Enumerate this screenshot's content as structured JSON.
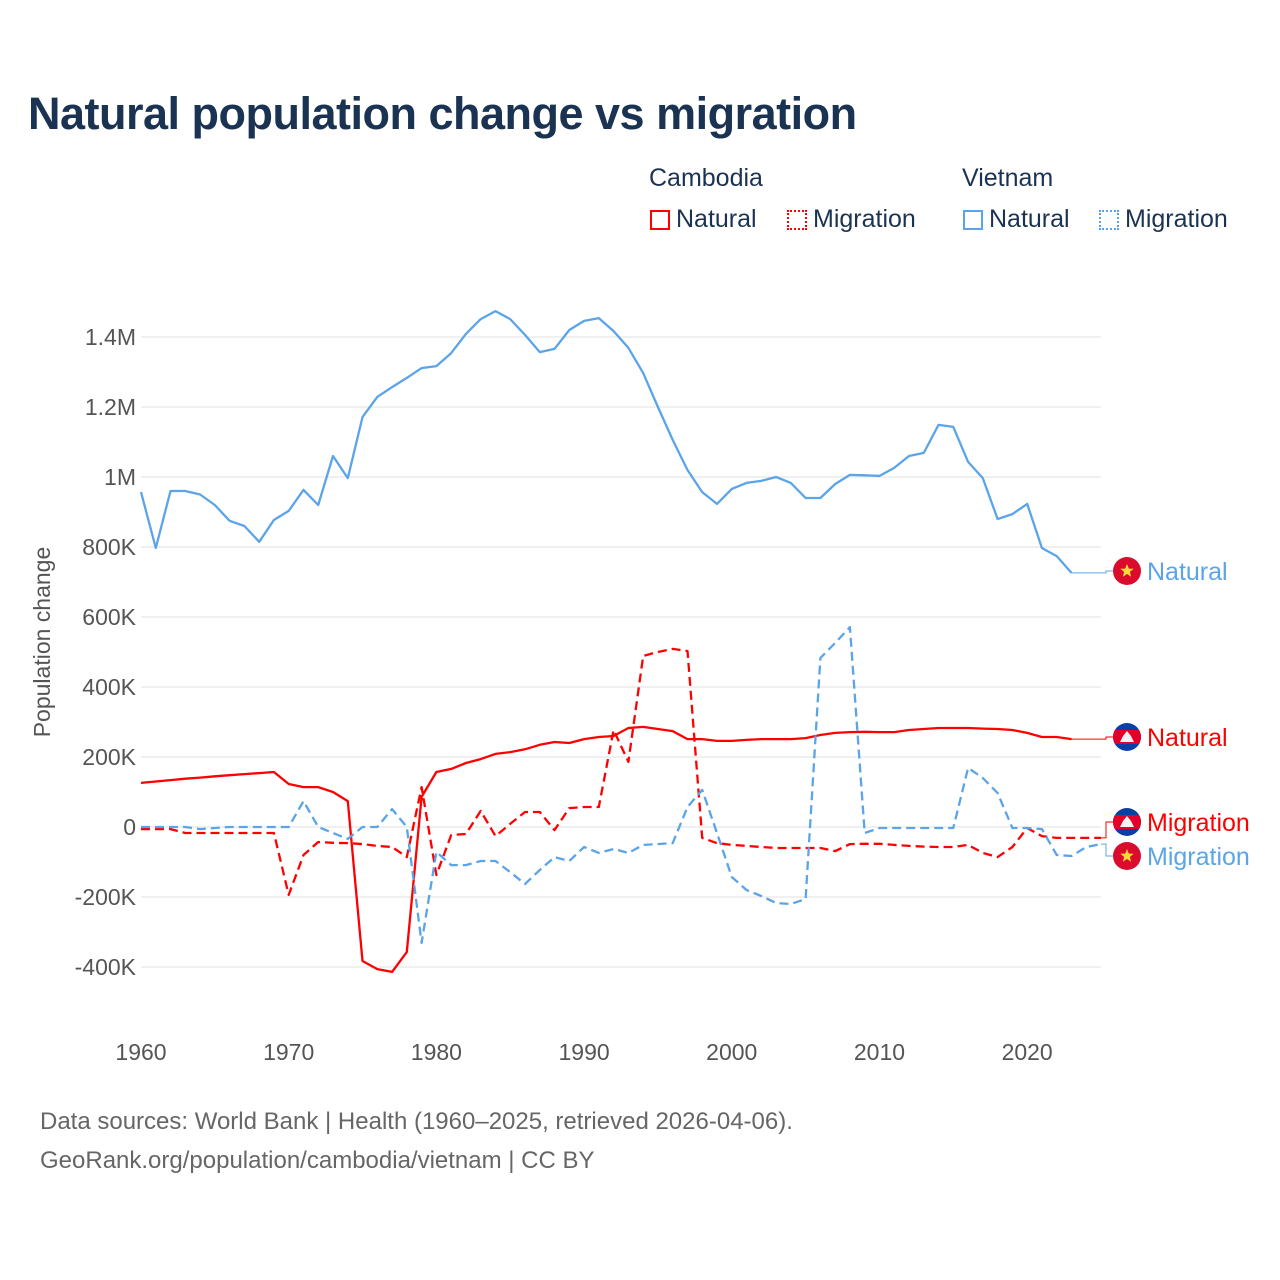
{
  "title": "Natural population change vs migration",
  "legend": {
    "groups": [
      {
        "country": "Cambodia",
        "items": [
          "Natural",
          "Migration"
        ],
        "color": "#ff0000"
      },
      {
        "country": "Vietnam",
        "items": [
          "Natural",
          "Migration"
        ],
        "color": "#5ba4e9"
      }
    ]
  },
  "footer": {
    "line1": "Data sources: World Bank | Health (1960–2025, retrieved 2026-04-06).",
    "line2": "GeoRank.org/population/cambodia/vietnam | CC BY"
  },
  "chart_data": {
    "type": "line",
    "title": "Natural population change vs migration",
    "xlabel": "",
    "ylabel": "Population change",
    "xlim": [
      1960,
      2025
    ],
    "ylim": [
      -500000,
      1500000
    ],
    "x_ticks": [
      1960,
      1970,
      1980,
      1990,
      2000,
      2010,
      2020
    ],
    "y_ticks": [
      {
        "value": -400000,
        "label": "-400K"
      },
      {
        "value": -200000,
        "label": "-200K"
      },
      {
        "value": 0,
        "label": "0"
      },
      {
        "value": 200000,
        "label": "200K"
      },
      {
        "value": 400000,
        "label": "400K"
      },
      {
        "value": 600000,
        "label": "600K"
      },
      {
        "value": 800000,
        "label": "800K"
      },
      {
        "value": 1000000,
        "label": "1M"
      },
      {
        "value": 1200000,
        "label": "1.2M"
      },
      {
        "value": 1400000,
        "label": "1.4M"
      }
    ],
    "grid": true,
    "legend_position": "top-right",
    "series": [
      {
        "name": "Vietnam Natural",
        "country": "Vietnam",
        "kind": "Natural",
        "label": "Natural",
        "color": "#5ba4e9",
        "dashed": false,
        "start_year": 1960,
        "flag": "vietnam-flag",
        "values_thousands": [
          957,
          797,
          960,
          960,
          950,
          920,
          875,
          860,
          815,
          877,
          903,
          963,
          920,
          1060,
          997,
          1171,
          1229,
          1257,
          1283,
          1311,
          1317,
          1354,
          1409,
          1451,
          1474,
          1451,
          1406,
          1357,
          1366,
          1420,
          1446,
          1454,
          1417,
          1369,
          1297,
          1200,
          1106,
          1020,
          957,
          923,
          966,
          983,
          989,
          1000,
          983,
          940,
          940,
          980,
          1006,
          1005,
          1003,
          1026,
          1060,
          1069,
          1149,
          1143,
          1043,
          997,
          880,
          894,
          923,
          797,
          774,
          726
        ]
      },
      {
        "name": "Cambodia Natural",
        "country": "Cambodia",
        "kind": "Natural",
        "label": "Natural",
        "color": "#ff0000",
        "dashed": false,
        "start_year": 1960,
        "flag": "cambodia-flag",
        "values_thousands": [
          126,
          130,
          134,
          138,
          141,
          145,
          148,
          151,
          154,
          157,
          123,
          114,
          114,
          100,
          74,
          -383,
          -406,
          -414,
          -357,
          86,
          157,
          166,
          183,
          194,
          209,
          214,
          222,
          235,
          243,
          240,
          251,
          257,
          260,
          283,
          286,
          280,
          274,
          251,
          251,
          246,
          246,
          249,
          251,
          251,
          251,
          254,
          263,
          269,
          271,
          272,
          271,
          271,
          277,
          280,
          283,
          283,
          283,
          281,
          280,
          277,
          269,
          257,
          257,
          251
        ]
      },
      {
        "name": "Cambodia Migration",
        "country": "Cambodia",
        "kind": "Migration",
        "label": "Migration",
        "color": "#ff0000",
        "dashed": true,
        "start_year": 1960,
        "flag": "cambodia-flag",
        "values_thousands": [
          -6,
          -6,
          -6,
          -17,
          -17,
          -17,
          -17,
          -17,
          -17,
          -17,
          -194,
          -80,
          -43,
          -45,
          -46,
          -49,
          -54,
          -57,
          -86,
          114,
          -137,
          -23,
          -20,
          46,
          -26,
          9,
          43,
          43,
          -9,
          54,
          57,
          57,
          277,
          186,
          489,
          500,
          509,
          503,
          -31,
          -46,
          -51,
          -54,
          -57,
          -60,
          -60,
          -60,
          -60,
          -69,
          -49,
          -48,
          -48,
          -51,
          -54,
          -56,
          -57,
          -57,
          -51,
          -74,
          -86,
          -57,
          -3,
          -26,
          -31,
          -31,
          -31,
          -31
        ]
      },
      {
        "name": "Vietnam Migration",
        "country": "Vietnam",
        "kind": "Migration",
        "label": "Migration",
        "color": "#5ba4e9",
        "dashed": true,
        "start_year": 1960,
        "flag": "vietnam-flag",
        "values_thousands": [
          0,
          0,
          0,
          0,
          -6,
          -3,
          0,
          0,
          0,
          0,
          0,
          74,
          0,
          -17,
          -34,
          0,
          0,
          51,
          0,
          -331,
          -71,
          -109,
          -109,
          -97,
          -97,
          -129,
          -163,
          -123,
          -86,
          -97,
          -57,
          -74,
          -63,
          -74,
          -51,
          -49,
          -46,
          57,
          106,
          -17,
          -143,
          -180,
          -197,
          -217,
          -220,
          -206,
          483,
          526,
          571,
          -17,
          -3,
          -3,
          -3,
          -3,
          -3,
          -3,
          169,
          140,
          97,
          -3,
          -3,
          -6,
          -80,
          -83,
          -57,
          -49
        ]
      }
    ]
  }
}
